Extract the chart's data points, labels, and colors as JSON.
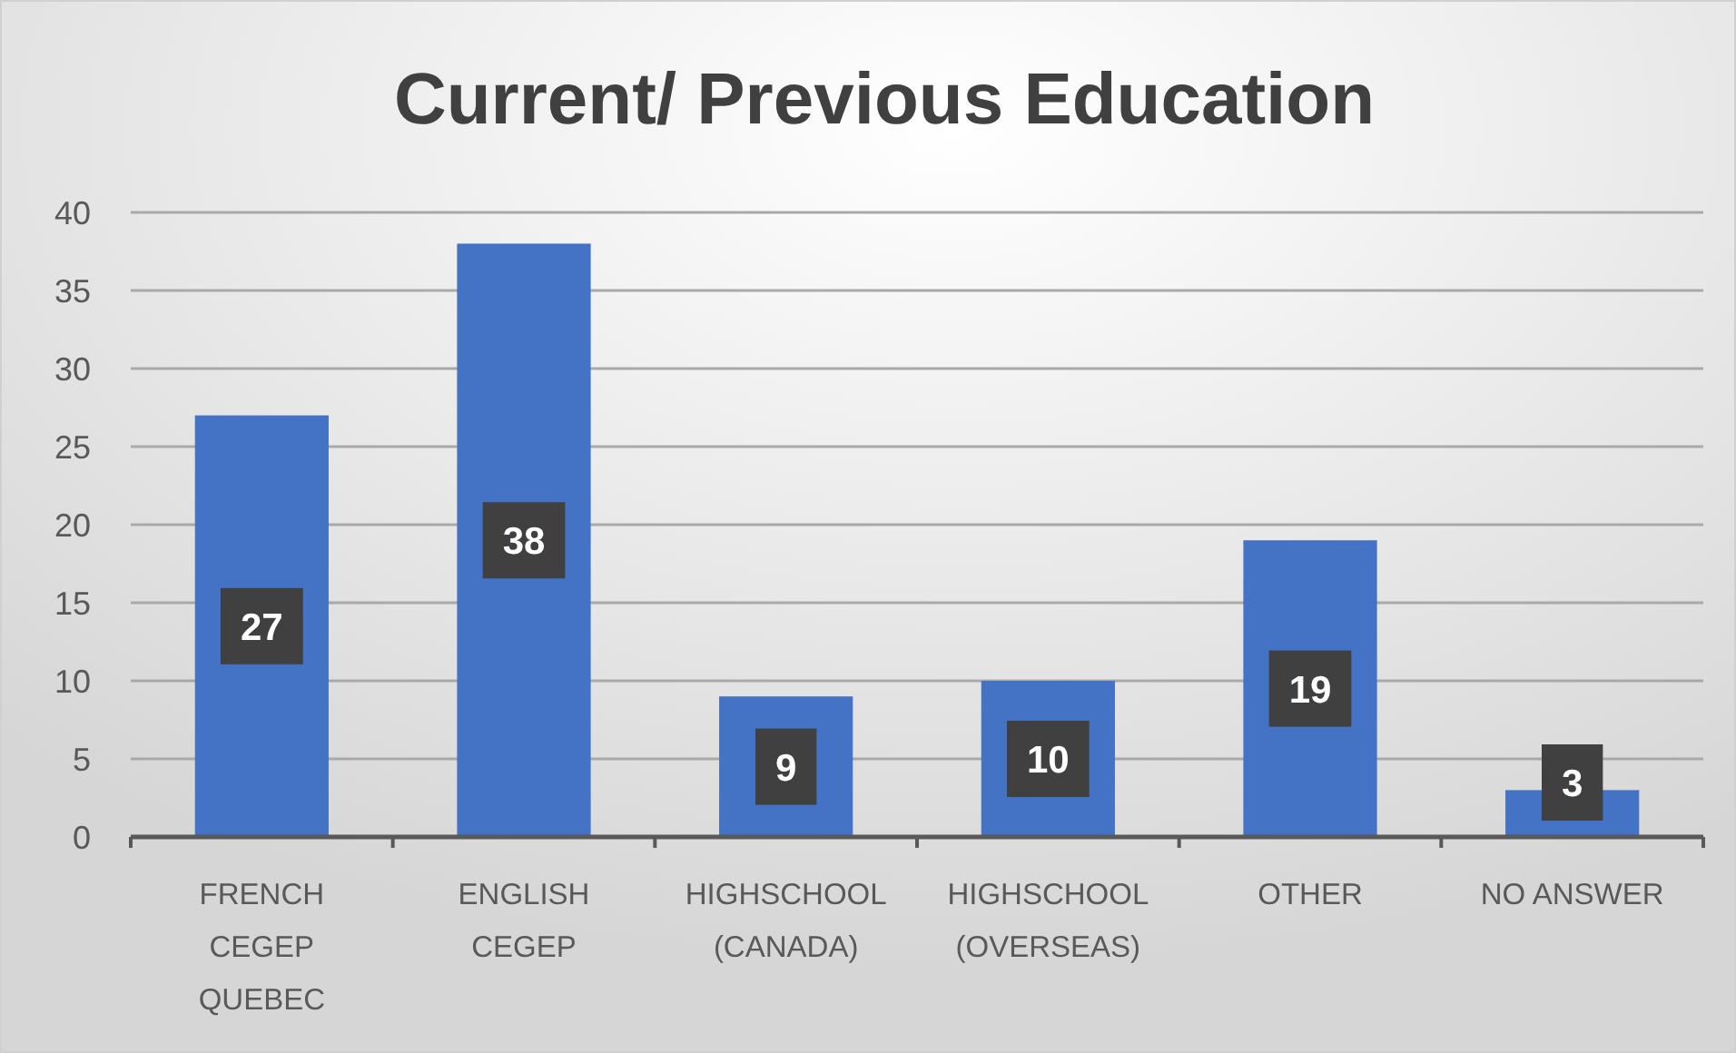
{
  "chart_data": {
    "type": "bar",
    "title": "Current/ Previous Education",
    "categories": [
      "FRENCH CEGEP QUEBEC",
      "ENGLISH CEGEP",
      "HIGHSCHOOL (CANADA)",
      "HIGHSCHOOL (OVERSEAS)",
      "OTHER",
      "NO ANSWER"
    ],
    "values": [
      27,
      38,
      9,
      10,
      19,
      3
    ],
    "color": "#4472c4",
    "ylim": [
      0,
      40
    ],
    "yticks": [
      0,
      5,
      10,
      15,
      20,
      25,
      30,
      35,
      40
    ],
    "grid": "y",
    "data_labels": true
  }
}
